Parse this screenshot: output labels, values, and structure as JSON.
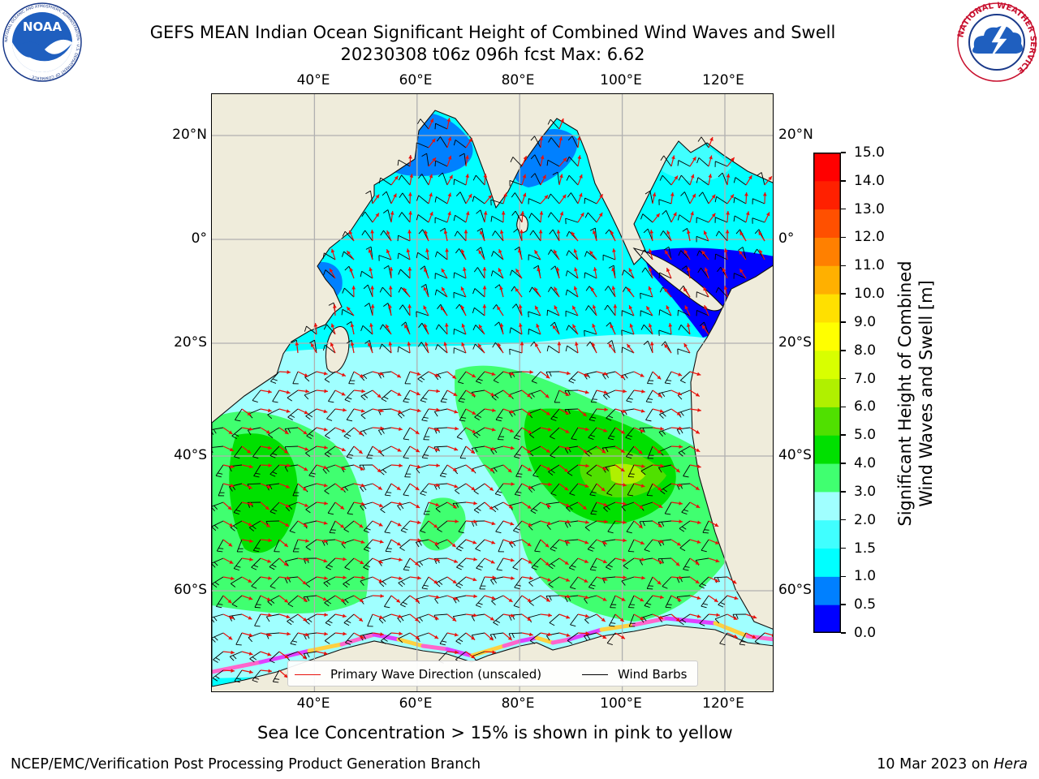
{
  "header": {
    "title_line1": "GEFS MEAN Indian Ocean Significant Height of Combined Wind Waves and Swell",
    "title_line2": "20230308 t06z 096h fcst   Max: 6.62"
  },
  "logos": {
    "left": {
      "text": "NOAA",
      "ring_text": "NATIONAL OCEANIC AND ATMOSPHERIC ADMINISTRATION · U.S. DEPARTMENT OF COMMERCE ·"
    },
    "right": {
      "ring_text": "NATIONAL WEATHER SERVICE"
    }
  },
  "map": {
    "lon_labels": [
      "40°E",
      "60°E",
      "80°E",
      "100°E",
      "120°E"
    ],
    "lat_labels": [
      "20°N",
      "0°",
      "20°S",
      "40°S",
      "60°S"
    ],
    "colors": {
      "land": "#efecdb",
      "coast": "#111111",
      "grid": "#b0b0b0",
      "wave_arrow": "#e8120c",
      "wind_barb": "#000000"
    }
  },
  "chart_data": {
    "type": "heatmap",
    "title": "GEFS MEAN Indian Ocean Significant Height of Combined Wind Waves and Swell",
    "subtitle": "20230308 t06z 096h fcst   Max: 6.62",
    "variable_max": 6.62,
    "lon_ticks": [
      40,
      60,
      80,
      100,
      120
    ],
    "lat_ticks": [
      20,
      0,
      -20,
      -40,
      -60
    ],
    "colorbar": {
      "label": "Significant Height of Combined Wind Waves and Swell [m]",
      "label_line1": "Significant Height of Combined",
      "label_line2": "Wind Waves and Swell [m]",
      "levels": [
        0.0,
        0.5,
        1.0,
        1.5,
        2.0,
        3.0,
        4.0,
        5.0,
        6.0,
        7.0,
        8.0,
        9.0,
        10.0,
        11.0,
        12.0,
        13.0,
        14.0,
        15.0
      ],
      "tick_labels": [
        "0.0",
        "0.5",
        "1.0",
        "1.5",
        "2.0",
        "3.0",
        "4.0",
        "5.0",
        "6.0",
        "7.0",
        "8.0",
        "9.0",
        "10.0",
        "11.0",
        "12.0",
        "13.0",
        "14.0",
        "15.0"
      ],
      "colors": [
        "#0000ff",
        "#0080ff",
        "#00ffff",
        "#40ffff",
        "#a0ffff",
        "#40ff70",
        "#00e000",
        "#50e000",
        "#b0f000",
        "#d8ff00",
        "#ffff00",
        "#ffe000",
        "#ffb000",
        "#ff8000",
        "#ff5000",
        "#ff2000",
        "#ff0000"
      ]
    },
    "legend": [
      {
        "label": "Primary Wave Direction (unscaled)",
        "color": "#e8120c"
      },
      {
        "label": "Wind Barbs",
        "color": "#000000"
      }
    ]
  },
  "caption": "Sea Ice Concentration > 15% is shown in pink to yellow",
  "footer": {
    "left": "NCEP/EMC/Verification Post Processing Product Generation Branch",
    "right_prefix": "10 Mar 2023 on ",
    "right_host": "Hera"
  }
}
